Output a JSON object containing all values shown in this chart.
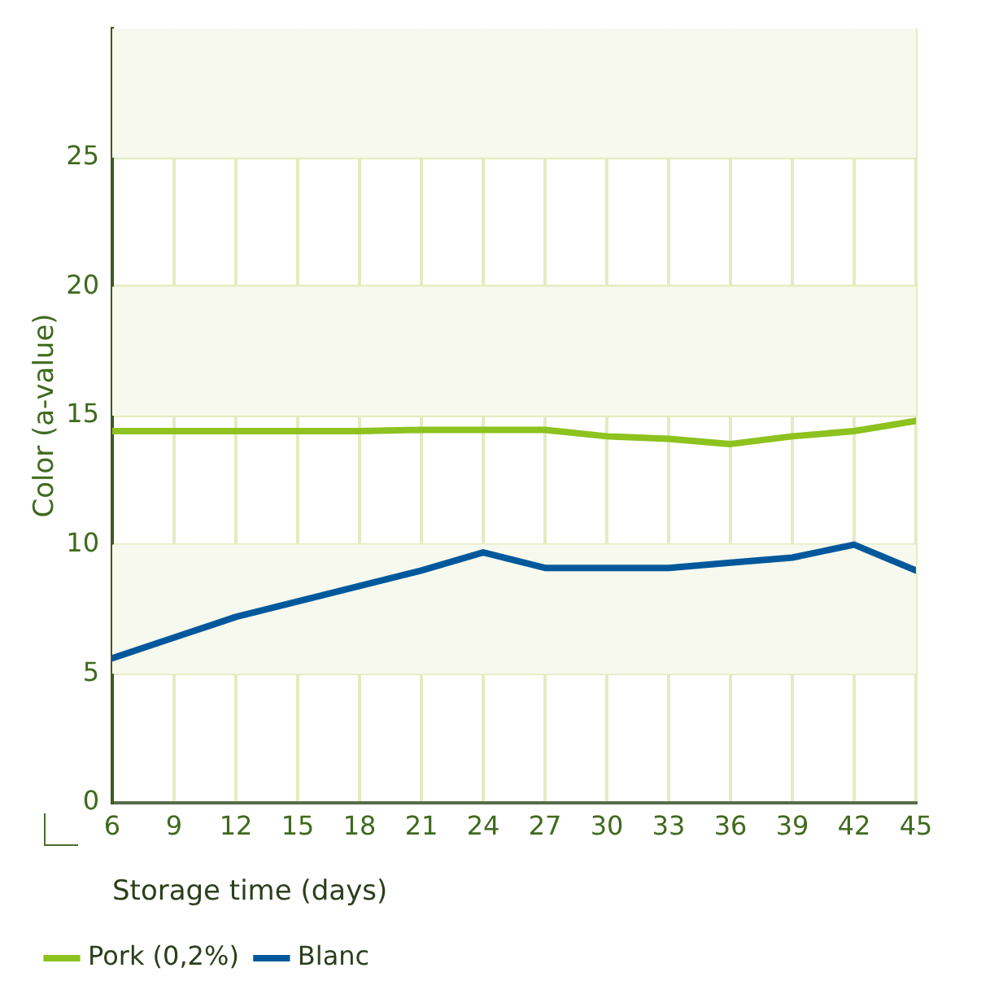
{
  "chart_data": {
    "type": "line",
    "xlabel": "Storage time (days)",
    "ylabel": "Color (a-value)",
    "x": [
      6,
      9,
      12,
      15,
      18,
      21,
      24,
      27,
      30,
      33,
      36,
      39,
      42,
      45
    ],
    "series": [
      {
        "name": "Pork (0,2%)",
        "color": "#8dc21f",
        "values": [
          14.4,
          14.4,
          14.4,
          14.4,
          14.4,
          14.45,
          14.45,
          14.45,
          14.2,
          14.1,
          13.9,
          14.2,
          14.4,
          14.8
        ]
      },
      {
        "name": "Blanc",
        "color": "#00589c",
        "values": [
          5.6,
          6.4,
          7.2,
          7.8,
          8.4,
          9.0,
          9.7,
          9.1,
          9.1,
          9.1,
          9.3,
          9.5,
          10.0,
          9.0
        ]
      }
    ],
    "xlim": [
      6,
      45
    ],
    "xticks": [
      6,
      9,
      12,
      15,
      18,
      21,
      24,
      27,
      30,
      33,
      36,
      39,
      42,
      45
    ],
    "ylim": [
      0,
      30
    ],
    "yticks": [
      0,
      5,
      10,
      15,
      20,
      25
    ],
    "bands": [
      {
        "axis": "y",
        "from": 5,
        "to": 10,
        "color": "#f7f9ee"
      },
      {
        "axis": "y",
        "from": 15,
        "to": 20,
        "color": "#f7f9ee"
      },
      {
        "axis": "y",
        "from": 25,
        "to": 30,
        "color": "#f7f9ee"
      }
    ],
    "grid": true,
    "legend": "bottom",
    "marker": "none",
    "line_style": "solid"
  }
}
